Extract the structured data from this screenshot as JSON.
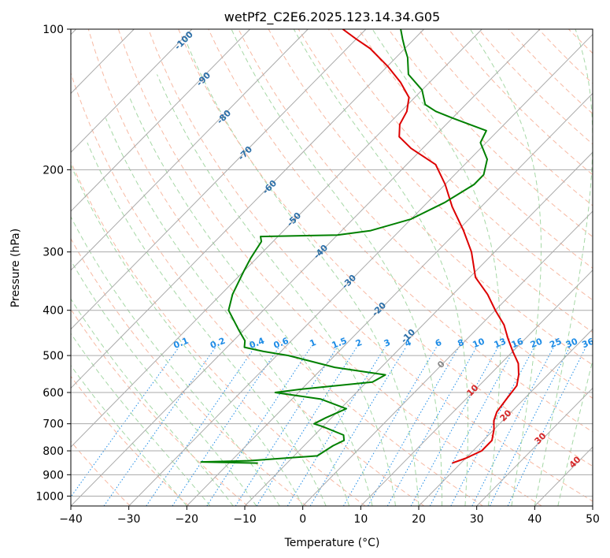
{
  "chart_data": {
    "type": "line",
    "title": "wetPf2_C2E6.2025.123.14.34.G05",
    "xlabel": "Temperature (°C)",
    "ylabel": "Pressure (hPa)",
    "xlim": [
      -40,
      50
    ],
    "ylim": [
      1050,
      100
    ],
    "y_scale": "log",
    "grid": true,
    "x_ticks": [
      -40,
      -30,
      -20,
      -10,
      0,
      10,
      20,
      30,
      40,
      50
    ],
    "y_ticks": [
      100,
      200,
      300,
      400,
      500,
      600,
      700,
      800,
      900,
      1000
    ],
    "series": [
      {
        "color": "#dd0000",
        "points": [
          {
            "p": 850,
            "t": 18.5
          },
          {
            "p": 830,
            "t": 20
          },
          {
            "p": 800,
            "t": 21.5
          },
          {
            "p": 760,
            "t": 21.5
          },
          {
            "p": 720,
            "t": 20
          },
          {
            "p": 690,
            "t": 18.5
          },
          {
            "p": 660,
            "t": 17.5
          },
          {
            "p": 620,
            "t": 17
          },
          {
            "p": 580,
            "t": 16.5
          },
          {
            "p": 550,
            "t": 15
          },
          {
            "p": 520,
            "t": 13
          },
          {
            "p": 490,
            "t": 10
          },
          {
            "p": 460,
            "t": 7
          },
          {
            "p": 430,
            "t": 4
          },
          {
            "p": 400,
            "t": 0
          },
          {
            "p": 370,
            "t": -4
          },
          {
            "p": 340,
            "t": -9
          },
          {
            "p": 300,
            "t": -14
          },
          {
            "p": 270,
            "t": -19
          },
          {
            "p": 240,
            "t": -25
          },
          {
            "p": 215,
            "t": -30
          },
          {
            "p": 195,
            "t": -35
          },
          {
            "p": 180,
            "t": -42
          },
          {
            "p": 170,
            "t": -46
          },
          {
            "p": 160,
            "t": -48
          },
          {
            "p": 150,
            "t": -49
          },
          {
            "p": 140,
            "t": -51
          },
          {
            "p": 130,
            "t": -55
          },
          {
            "p": 120,
            "t": -60
          },
          {
            "p": 110,
            "t": -66
          },
          {
            "p": 105,
            "t": -70
          },
          {
            "p": 100,
            "t": -74
          }
        ]
      },
      {
        "color": "#008000",
        "points": [
          {
            "p": 850,
            "t": -15
          },
          {
            "p": 845,
            "t": -25
          },
          {
            "p": 840,
            "t": -17
          },
          {
            "p": 820,
            "t": -6
          },
          {
            "p": 780,
            "t": -5
          },
          {
            "p": 760,
            "t": -4
          },
          {
            "p": 740,
            "t": -5
          },
          {
            "p": 710,
            "t": -10
          },
          {
            "p": 700,
            "t": -12
          },
          {
            "p": 680,
            "t": -11
          },
          {
            "p": 650,
            "t": -9
          },
          {
            "p": 620,
            "t": -15
          },
          {
            "p": 600,
            "t": -24
          },
          {
            "p": 590,
            "t": -20
          },
          {
            "p": 570,
            "t": -9
          },
          {
            "p": 550,
            "t": -8
          },
          {
            "p": 530,
            "t": -18
          },
          {
            "p": 500,
            "t": -28
          },
          {
            "p": 490,
            "t": -33
          },
          {
            "p": 480,
            "t": -37
          },
          {
            "p": 465,
            "t": -38
          },
          {
            "p": 440,
            "t": -41
          },
          {
            "p": 400,
            "t": -46
          },
          {
            "p": 370,
            "t": -48
          },
          {
            "p": 330,
            "t": -50
          },
          {
            "p": 310,
            "t": -51
          },
          {
            "p": 285,
            "t": -52
          },
          {
            "p": 278,
            "t": -53
          },
          {
            "p": 276,
            "t": -40
          },
          {
            "p": 270,
            "t": -35
          },
          {
            "p": 255,
            "t": -30
          },
          {
            "p": 235,
            "t": -27
          },
          {
            "p": 215,
            "t": -25
          },
          {
            "p": 205,
            "t": -25
          },
          {
            "p": 190,
            "t": -27
          },
          {
            "p": 175,
            "t": -31
          },
          {
            "p": 165,
            "t": -32
          },
          {
            "p": 155,
            "t": -40
          },
          {
            "p": 150,
            "t": -44
          },
          {
            "p": 145,
            "t": -47
          },
          {
            "p": 135,
            "t": -50
          },
          {
            "p": 125,
            "t": -55
          },
          {
            "p": 115,
            "t": -58
          },
          {
            "p": 110,
            "t": -60
          },
          {
            "p": 105,
            "t": -62
          },
          {
            "p": 100,
            "t": -64
          }
        ]
      }
    ],
    "skew_labels": [
      "-100",
      "-90",
      "-80",
      "-70",
      "-60",
      "-50",
      "-40",
      "-30",
      "-20",
      "-10"
    ],
    "dry_adiabat_labels": [
      "0",
      "10",
      "20",
      "30",
      "40"
    ],
    "mixing_ratio_labels": [
      "0.1",
      "0.2",
      "0.4",
      "0.6",
      "1",
      "1.5",
      "2",
      "3",
      "4",
      "6",
      "8",
      "10",
      "13",
      "16",
      "20",
      "25",
      "30",
      "36"
    ]
  },
  "colors": {
    "temperature": "#dd0000",
    "dewpoint": "#008000",
    "isotherm": "#aaaaaa",
    "dry_adiabat": "#f7b9a3",
    "moist_adiabat": "#a6d8a6",
    "mixing_ratio": "#1e8ce6",
    "skew_label": "#2c6fa8",
    "adiabat_label": "#d62728"
  }
}
